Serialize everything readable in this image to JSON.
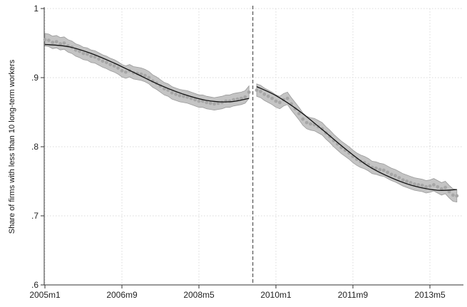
{
  "chart_data": {
    "type": "scatter",
    "ylabel": "Share of firms with less than 10 long-term workers",
    "xlabel": "",
    "ylim": [
      0.6,
      1.0
    ],
    "y_ticks": [
      {
        "value": 1.0,
        "label": "1"
      },
      {
        "value": 0.9,
        "label": ".9"
      },
      {
        "value": 0.8,
        "label": ".8"
      },
      {
        "value": 0.7,
        "label": ".7"
      },
      {
        "value": 0.6,
        "label": ".6"
      }
    ],
    "x_ticks": [
      "2005m1",
      "2006m9",
      "2008m5",
      "2010m1",
      "2011m9",
      "2013m5"
    ],
    "grid": "horizontal dotted + vertical dotted",
    "break_line": "2009m7",
    "colors": {
      "points": "#a6a6a6",
      "ci_band": "#c4c4c4",
      "fit_line": "#111111",
      "break_line": "#555555",
      "grid": "#d9d9d9"
    },
    "series": [
      {
        "segment": "pre",
        "points": [
          [
            "2005m1",
            0.955
          ],
          [
            "2005m2",
            0.954
          ],
          [
            "2005m3",
            0.951
          ],
          [
            "2005m4",
            0.952
          ],
          [
            "2005m5",
            0.949
          ],
          [
            "2005m6",
            0.95
          ],
          [
            "2005m7",
            0.946
          ],
          [
            "2005m8",
            0.944
          ],
          [
            "2005m9",
            0.94
          ],
          [
            "2005m10",
            0.938
          ],
          [
            "2005m11",
            0.935
          ],
          [
            "2005m12",
            0.934
          ],
          [
            "2006m1",
            0.931
          ],
          [
            "2006m2",
            0.93
          ],
          [
            "2006m3",
            0.927
          ],
          [
            "2006m4",
            0.924
          ],
          [
            "2006m5",
            0.922
          ],
          [
            "2006m6",
            0.919
          ],
          [
            "2006m7",
            0.917
          ],
          [
            "2006m8",
            0.914
          ],
          [
            "2006m9",
            0.91
          ],
          [
            "2006m10",
            0.908
          ],
          [
            "2006m11",
            0.91
          ],
          [
            "2006m12",
            0.907
          ],
          [
            "2007m1",
            0.906
          ],
          [
            "2007m2",
            0.905
          ],
          [
            "2007m3",
            0.903
          ],
          [
            "2007m4",
            0.9
          ],
          [
            "2007m5",
            0.895
          ],
          [
            "2007m6",
            0.892
          ],
          [
            "2007m7",
            0.888
          ],
          [
            "2007m8",
            0.884
          ],
          [
            "2007m9",
            0.882
          ],
          [
            "2007m10",
            0.878
          ],
          [
            "2007m11",
            0.876
          ],
          [
            "2007m12",
            0.874
          ],
          [
            "2008m1",
            0.873
          ],
          [
            "2008m2",
            0.872
          ],
          [
            "2008m3",
            0.87
          ],
          [
            "2008m4",
            0.868
          ],
          [
            "2008m5",
            0.866
          ],
          [
            "2008m6",
            0.866
          ],
          [
            "2008m7",
            0.864
          ],
          [
            "2008m8",
            0.863
          ],
          [
            "2008m9",
            0.862
          ],
          [
            "2008m10",
            0.863
          ],
          [
            "2008m11",
            0.864
          ],
          [
            "2008m12",
            0.866
          ],
          [
            "2009m1",
            0.866
          ],
          [
            "2009m2",
            0.868
          ],
          [
            "2009m3",
            0.869
          ],
          [
            "2009m4",
            0.87
          ],
          [
            "2009m5",
            0.872
          ],
          [
            "2009m6",
            0.879
          ]
        ],
        "fit": [
          [
            "2005m1",
            0.948
          ],
          [
            "2005m7",
            0.945
          ],
          [
            "2006m1",
            0.935
          ],
          [
            "2006m7",
            0.921
          ],
          [
            "2007m1",
            0.905
          ],
          [
            "2007m7",
            0.889
          ],
          [
            "2008m1",
            0.876
          ],
          [
            "2008m7",
            0.867
          ],
          [
            "2009m1",
            0.865
          ],
          [
            "2009m6",
            0.87
          ]
        ]
      },
      {
        "segment": "post",
        "points": [
          [
            "2009m8",
            0.882
          ],
          [
            "2009m9",
            0.88
          ],
          [
            "2009m10",
            0.876
          ],
          [
            "2009m11",
            0.873
          ],
          [
            "2009m12",
            0.87
          ],
          [
            "2010m1",
            0.866
          ],
          [
            "2010m2",
            0.864
          ],
          [
            "2010m3",
            0.868
          ],
          [
            "2010m4",
            0.87
          ],
          [
            "2010m5",
            0.862
          ],
          [
            "2010m6",
            0.855
          ],
          [
            "2010m7",
            0.848
          ],
          [
            "2010m8",
            0.84
          ],
          [
            "2010m9",
            0.835
          ],
          [
            "2010m10",
            0.833
          ],
          [
            "2010m11",
            0.832
          ],
          [
            "2010m12",
            0.829
          ],
          [
            "2011m1",
            0.826
          ],
          [
            "2011m2",
            0.82
          ],
          [
            "2011m3",
            0.815
          ],
          [
            "2011m4",
            0.809
          ],
          [
            "2011m5",
            0.804
          ],
          [
            "2011m6",
            0.799
          ],
          [
            "2011m7",
            0.795
          ],
          [
            "2011m8",
            0.791
          ],
          [
            "2011m9",
            0.786
          ],
          [
            "2011m10",
            0.782
          ],
          [
            "2011m11",
            0.779
          ],
          [
            "2011m12",
            0.777
          ],
          [
            "2012m1",
            0.774
          ],
          [
            "2012m2",
            0.77
          ],
          [
            "2012m3",
            0.769
          ],
          [
            "2012m4",
            0.767
          ],
          [
            "2012m5",
            0.766
          ],
          [
            "2012m6",
            0.763
          ],
          [
            "2012m7",
            0.76
          ],
          [
            "2012m8",
            0.758
          ],
          [
            "2012m9",
            0.755
          ],
          [
            "2012m10",
            0.752
          ],
          [
            "2012m11",
            0.75
          ],
          [
            "2012m12",
            0.748
          ],
          [
            "2013m1",
            0.746
          ],
          [
            "2013m2",
            0.745
          ],
          [
            "2013m3",
            0.744
          ],
          [
            "2013m4",
            0.742
          ],
          [
            "2013m5",
            0.743
          ],
          [
            "2013m6",
            0.745
          ],
          [
            "2013m7",
            0.742
          ],
          [
            "2013m8",
            0.739
          ],
          [
            "2013m9",
            0.741
          ],
          [
            "2013m10",
            0.735
          ],
          [
            "2013m11",
            0.73
          ],
          [
            "2013m12",
            0.729
          ]
        ],
        "fit": [
          [
            "2009m8",
            0.887
          ],
          [
            "2010m1",
            0.874
          ],
          [
            "2010m7",
            0.852
          ],
          [
            "2011m1",
            0.825
          ],
          [
            "2011m7",
            0.797
          ],
          [
            "2012m1",
            0.772
          ],
          [
            "2012m7",
            0.755
          ],
          [
            "2013m1",
            0.743
          ],
          [
            "2013m7",
            0.737
          ],
          [
            "2013m12",
            0.738
          ]
        ]
      }
    ]
  }
}
